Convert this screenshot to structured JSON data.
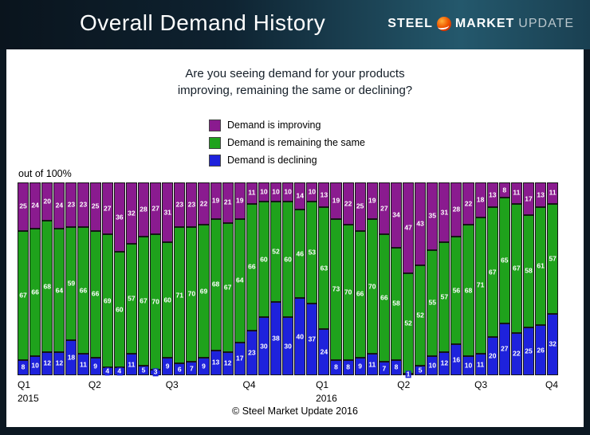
{
  "header": {
    "title": "Overall Demand History",
    "logo": {
      "steel": "STEEL",
      "market": "MARKET",
      "update": "UPDATE"
    }
  },
  "question": {
    "line1": "Are you seeing demand for your products",
    "line2": "improving, remaining the same or declining?"
  },
  "legend": [
    {
      "label": "Demand is improving",
      "color": "#8a1b8f"
    },
    {
      "label": "Demand is remaining the same",
      "color": "#1fa21c"
    },
    {
      "label": "Demand is declining",
      "color": "#1e22dc"
    }
  ],
  "axis_note": "out of 100%",
  "footer": "© Steel Market Update 2016",
  "chart_data": {
    "type": "bar",
    "stacked": true,
    "ylim": [
      0,
      100
    ],
    "legend_position": "top",
    "series": [
      {
        "key": "improving",
        "name": "Demand is improving",
        "color": "#8a1b8f",
        "values": [
          25,
          24,
          20,
          24,
          23,
          23,
          25,
          27,
          36,
          32,
          28,
          27,
          31,
          23,
          23,
          22,
          19,
          21,
          19,
          11,
          10,
          10,
          10,
          14,
          10,
          13,
          19,
          22,
          25,
          19,
          27,
          34,
          47,
          43,
          35,
          31,
          28,
          22,
          18,
          13,
          8,
          11,
          17,
          13,
          11
        ]
      },
      {
        "key": "same",
        "name": "Demand is remaining the same",
        "color": "#1fa21c",
        "values": [
          67,
          66,
          68,
          64,
          59,
          66,
          66,
          69,
          60,
          57,
          67,
          70,
          60,
          71,
          70,
          69,
          68,
          67,
          64,
          66,
          60,
          52,
          60,
          46,
          53,
          63,
          73,
          70,
          66,
          70,
          66,
          58,
          52,
          52,
          55,
          57,
          56,
          68,
          71,
          67,
          65,
          67,
          58,
          61,
          57
        ]
      },
      {
        "key": "declining",
        "name": "Demand is declining",
        "color": "#1e22dc",
        "values": [
          8,
          10,
          12,
          12,
          18,
          11,
          9,
          4,
          4,
          11,
          5,
          3,
          9,
          6,
          7,
          9,
          13,
          12,
          17,
          23,
          30,
          38,
          30,
          40,
          37,
          24,
          8,
          8,
          9,
          11,
          7,
          8,
          1,
          5,
          10,
          12,
          16,
          10,
          11,
          20,
          27,
          22,
          25,
          26,
          32
        ]
      }
    ],
    "x_ticks": [
      {
        "label": "Q1",
        "sublabel": "2015"
      },
      {
        "label": "Q2"
      },
      {
        "label": "Q3"
      },
      {
        "label": "Q4"
      },
      {
        "label": "Q1",
        "sublabel": "2016"
      },
      {
        "label": "Q2"
      },
      {
        "label": "Q3"
      },
      {
        "label": "Q4"
      }
    ]
  }
}
